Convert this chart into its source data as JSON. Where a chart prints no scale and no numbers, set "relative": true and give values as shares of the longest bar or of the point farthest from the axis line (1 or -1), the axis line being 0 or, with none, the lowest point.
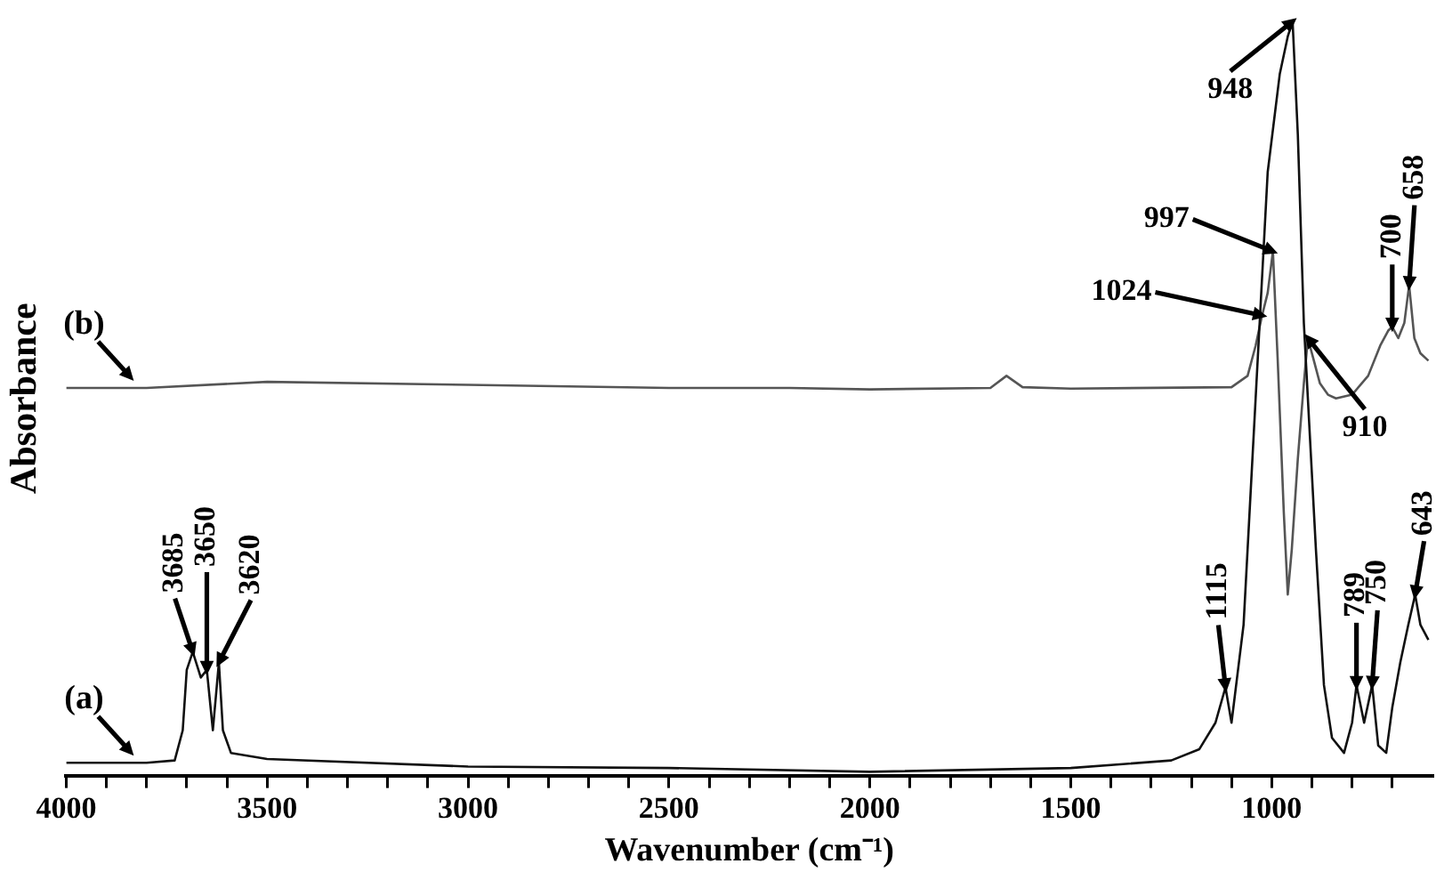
{
  "chart_data": {
    "type": "line",
    "relative": true,
    "xlabel": "Wavenumber (cm⁻¹)",
    "ylabel": "Absorbance",
    "xlim": [
      4000,
      600
    ],
    "xticks": [
      4000,
      {
        "value": 3900,
        "label": null
      },
      {
        "value": 3800,
        "label": null
      },
      {
        "value": 3700,
        "label": null
      },
      {
        "value": 3600,
        "label": null
      },
      3500,
      {
        "value": 3400,
        "label": null
      },
      {
        "value": 3300,
        "label": null
      },
      {
        "value": 3200,
        "label": null
      },
      {
        "value": 3100,
        "label": null
      },
      3000,
      {
        "value": 2900,
        "label": null
      },
      {
        "value": 2800,
        "label": null
      },
      {
        "value": 2700,
        "label": null
      },
      {
        "value": 2600,
        "label": null
      },
      2500,
      {
        "value": 2400,
        "label": null
      },
      {
        "value": 2300,
        "label": null
      },
      {
        "value": 2200,
        "label": null
      },
      {
        "value": 2100,
        "label": null
      },
      2000,
      {
        "value": 1900,
        "label": null
      },
      {
        "value": 1800,
        "label": null
      },
      {
        "value": 1700,
        "label": null
      },
      {
        "value": 1600,
        "label": null
      },
      1500,
      {
        "value": 1400,
        "label": null
      },
      {
        "value": 1300,
        "label": null
      },
      {
        "value": 1200,
        "label": null
      },
      {
        "value": 1100,
        "label": null
      },
      1000,
      {
        "value": 900,
        "label": null
      },
      {
        "value": 800,
        "label": null
      },
      {
        "value": 700,
        "label": null
      }
    ],
    "grid": false,
    "legend": false,
    "marker": "none",
    "line_style": "solid",
    "series": [
      {
        "name": "(a)",
        "color": "#111111",
        "x": [
          4000,
          3800,
          3730,
          3710,
          3700,
          3685,
          3665,
          3650,
          3635,
          3625,
          3620,
          3610,
          3590,
          3500,
          3000,
          2500,
          2000,
          1500,
          1250,
          1180,
          1140,
          1115,
          1100,
          1070,
          1040,
          1010,
          980,
          960,
          948,
          935,
          920,
          905,
          890,
          870,
          850,
          820,
          800,
          789,
          770,
          750,
          735,
          715,
          700,
          680,
          660,
          643,
          630,
          610
        ],
        "values": [
          0.017,
          0.017,
          0.02,
          0.06,
          0.14,
          0.164,
          0.13,
          0.14,
          0.06,
          0.12,
          0.15,
          0.06,
          0.03,
          0.022,
          0.012,
          0.01,
          0.005,
          0.01,
          0.02,
          0.035,
          0.07,
          0.117,
          0.07,
          0.2,
          0.5,
          0.8,
          0.93,
          0.98,
          1.0,
          0.85,
          0.6,
          0.45,
          0.3,
          0.12,
          0.05,
          0.03,
          0.07,
          0.12,
          0.07,
          0.12,
          0.04,
          0.03,
          0.09,
          0.15,
          0.2,
          0.24,
          0.2,
          0.18
        ]
      },
      {
        "name": "(b)",
        "color": "#555555",
        "x": [
          4000,
          3800,
          3500,
          3000,
          2500,
          2200,
          2000,
          1700,
          1660,
          1620,
          1500,
          1100,
          1060,
          1040,
          1024,
          1010,
          997,
          985,
          970,
          960,
          950,
          935,
          920,
          910,
          895,
          880,
          860,
          840,
          800,
          760,
          730,
          710,
          700,
          685,
          670,
          658,
          645,
          630,
          610
        ],
        "values": [
          0.514,
          0.514,
          0.522,
          0.518,
          0.514,
          0.514,
          0.512,
          0.514,
          0.53,
          0.515,
          0.513,
          0.515,
          0.53,
          0.57,
          0.61,
          0.64,
          0.695,
          0.55,
          0.35,
          0.24,
          0.3,
          0.42,
          0.52,
          0.58,
          0.55,
          0.52,
          0.505,
          0.5,
          0.505,
          0.53,
          0.57,
          0.59,
          0.595,
          0.58,
          0.6,
          0.65,
          0.58,
          0.56,
          0.55
        ]
      }
    ],
    "annotations": [
      {
        "text": "3685",
        "x": 3685,
        "y": 0.164
      },
      {
        "text": "3650",
        "x": 3650,
        "y": 0.14
      },
      {
        "text": "3620",
        "x": 3620,
        "y": 0.15
      },
      {
        "text": "1115",
        "x": 1115,
        "y": 0.117
      },
      {
        "text": "789",
        "x": 789,
        "y": 0.12
      },
      {
        "text": "750",
        "x": 750,
        "y": 0.12
      },
      {
        "text": "643",
        "x": 643,
        "y": 0.24
      },
      {
        "text": "1024",
        "x": 1024,
        "y": 0.61
      },
      {
        "text": "997",
        "x": 997,
        "y": 0.695
      },
      {
        "text": "948",
        "x": 948,
        "y": 1.0
      },
      {
        "text": "910",
        "x": 910,
        "y": 0.58
      },
      {
        "text": "700",
        "x": 700,
        "y": 0.595
      },
      {
        "text": "658",
        "x": 658,
        "y": 0.65
      }
    ]
  }
}
